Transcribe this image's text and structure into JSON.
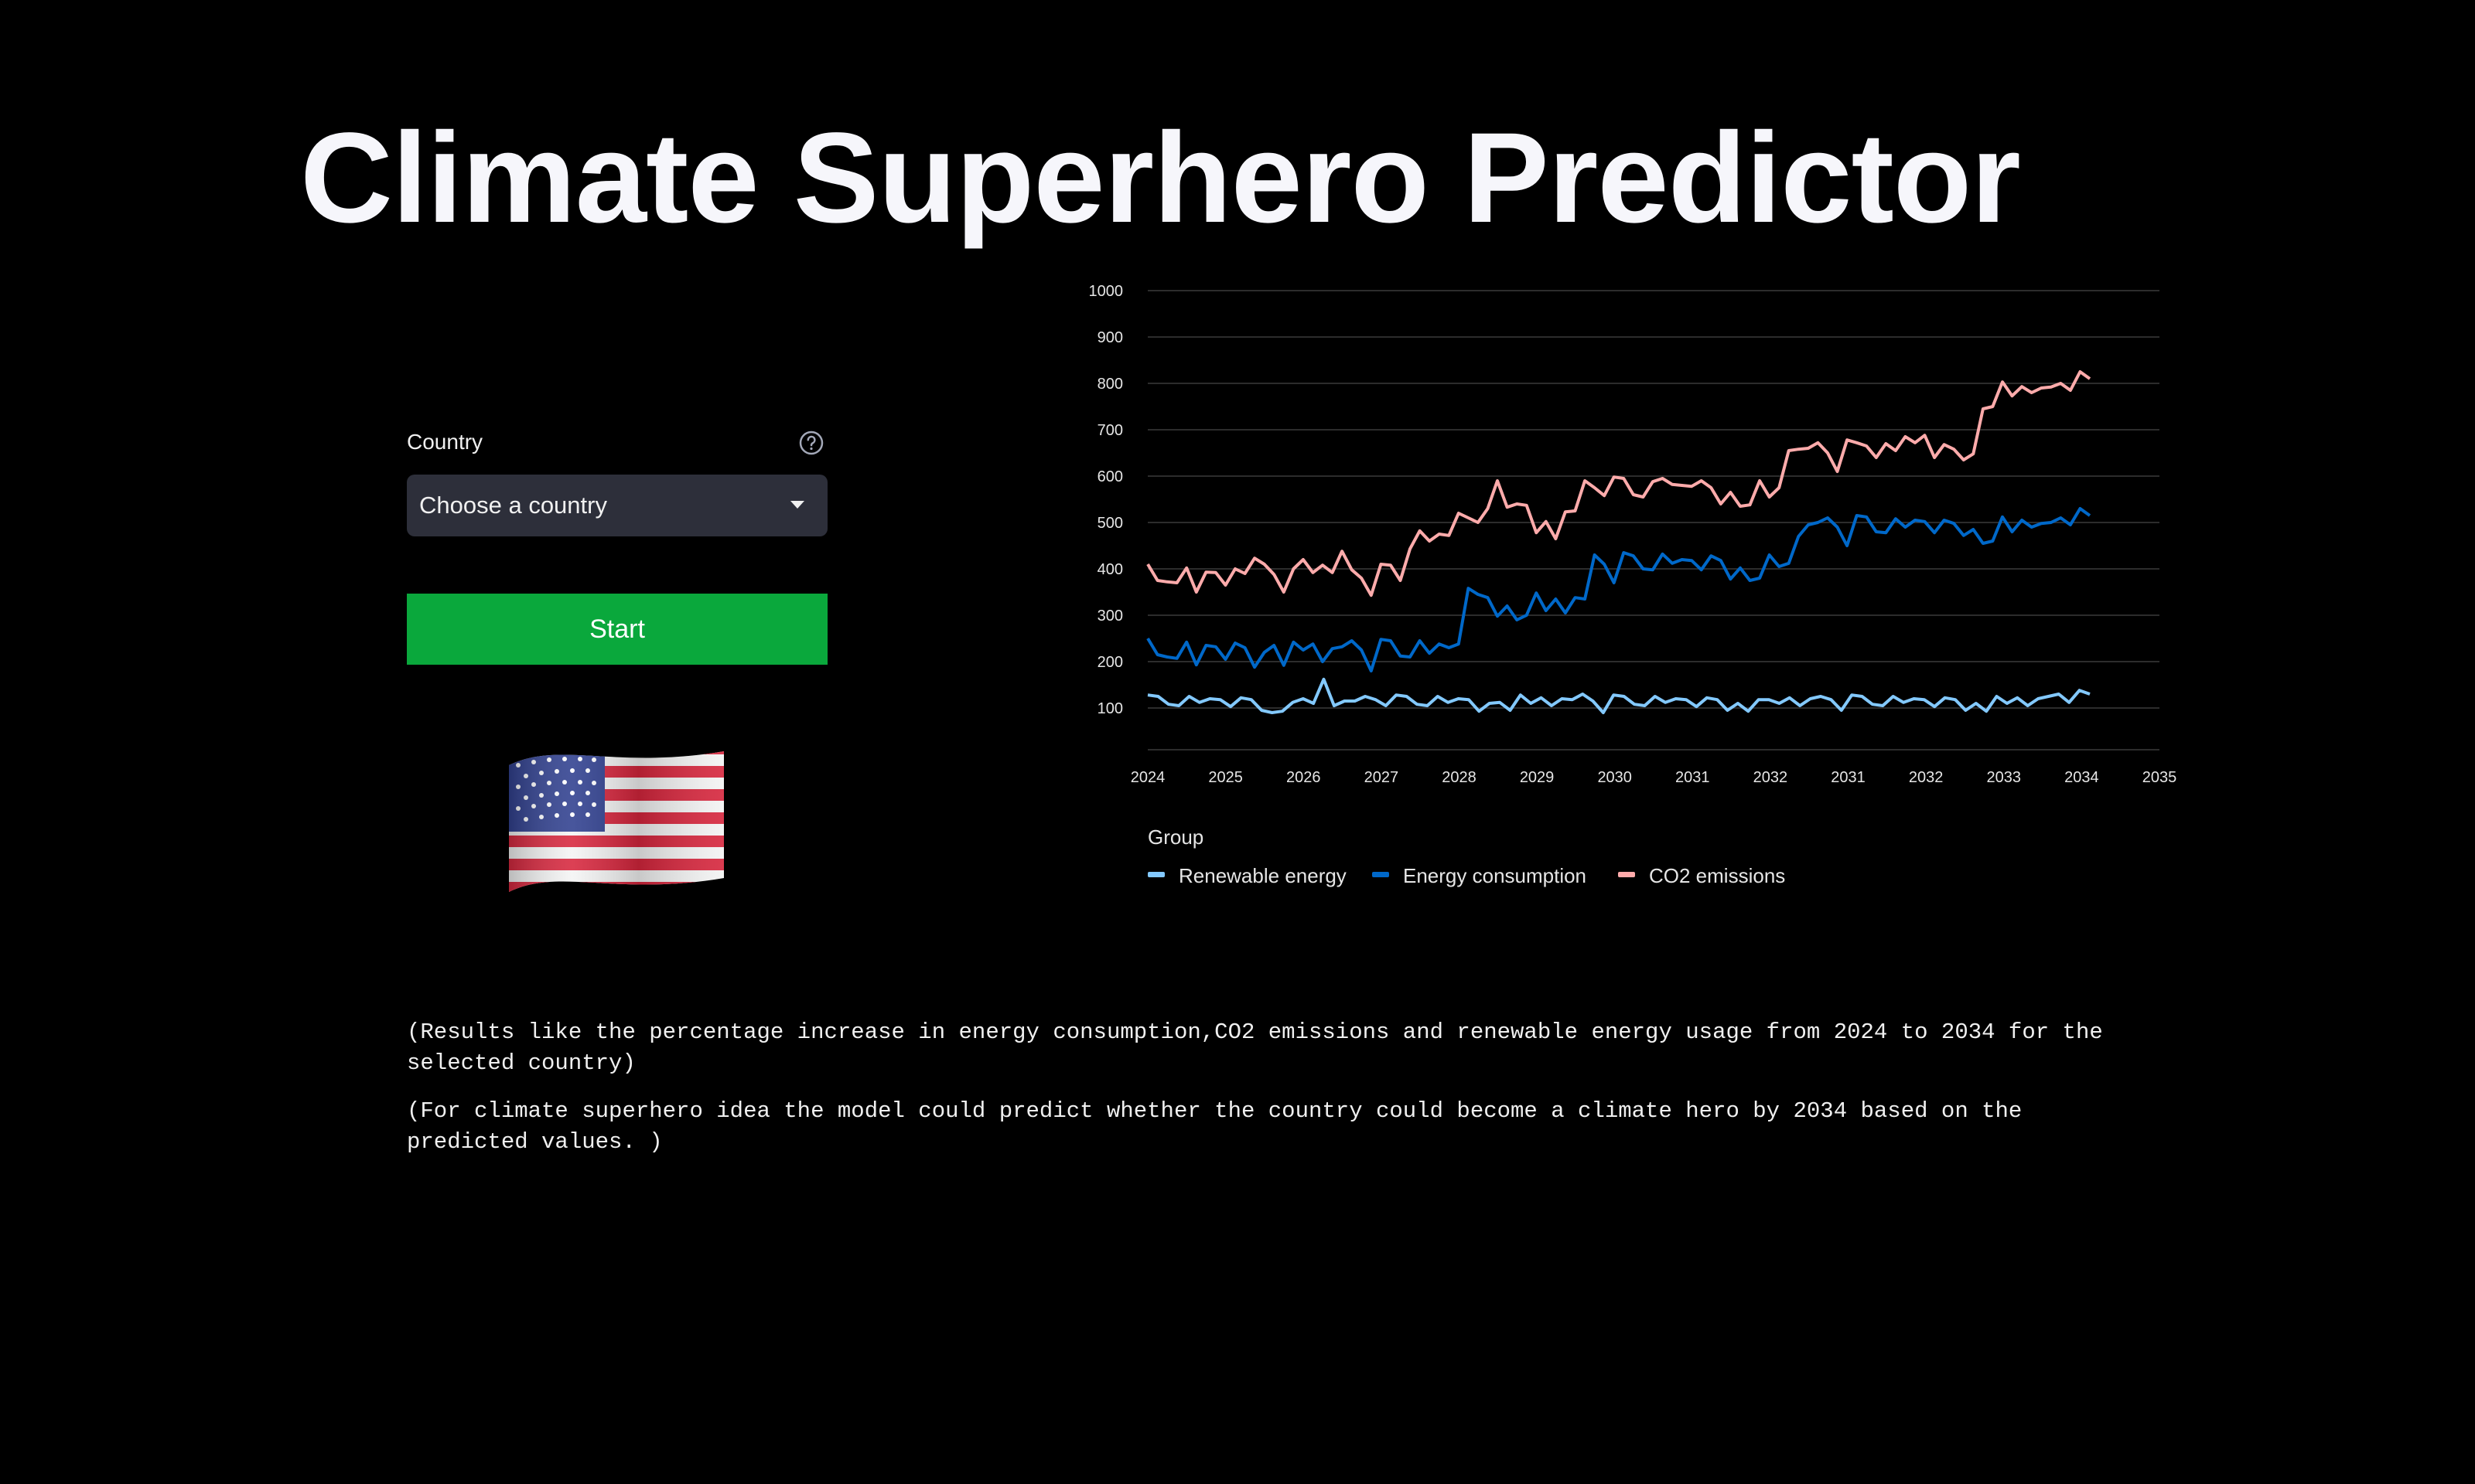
{
  "page": {
    "title": "Climate Superhero Predictor"
  },
  "country_select": {
    "label": "Country",
    "placeholder": "Choose a country",
    "help_icon": "question-circle-icon"
  },
  "start_button": {
    "label": "Start",
    "color": "#0aa83c"
  },
  "flag": {
    "icon": "us-flag-icon"
  },
  "results": {
    "line1": "(Results like the percentage increase in energy consumption,CO2 emissions and renewable energy usage from 2024 to 2034 for the selected country)",
    "line2": "(For climate superhero idea the model could predict whether the country could become a climate hero by 2034 based on the predicted values. )"
  },
  "chart_data": {
    "type": "line",
    "title": "",
    "xlabel": "",
    "ylabel": "",
    "y_ticks": [
      100,
      200,
      300,
      400,
      500,
      600,
      700,
      800,
      900,
      1000
    ],
    "ylim": [
      10,
      1000
    ],
    "x_tick_labels": [
      "2024",
      "2025",
      "2026",
      "2027",
      "2028",
      "2029",
      "2030",
      "2031",
      "2032",
      "2031",
      "2032",
      "2033",
      "2034",
      "2035"
    ],
    "grid": "horizontal",
    "legend": {
      "title": "Group",
      "placement": "bottom-left"
    },
    "series": [
      {
        "name": "Renewable energy",
        "color": "#83c9ff",
        "values": [
          128,
          125,
          108,
          105,
          125,
          112,
          120,
          118,
          103,
          122,
          118,
          95,
          90,
          93,
          112,
          120,
          110,
          162,
          105,
          115,
          115,
          125,
          118,
          105,
          128,
          125,
          108,
          105,
          125,
          112,
          120,
          118,
          93,
          110,
          112,
          95,
          128,
          110,
          122,
          105,
          120,
          118,
          130,
          115,
          90,
          128,
          125,
          108,
          105,
          125,
          112,
          120,
          118,
          103,
          122,
          118,
          95,
          110,
          93,
          118,
          118,
          110,
          122,
          105,
          120,
          125,
          118,
          95,
          128,
          125,
          108,
          105,
          125,
          112,
          120,
          118,
          103,
          122,
          118,
          95,
          110,
          93,
          125,
          110,
          122,
          105,
          120,
          125,
          130,
          112,
          138,
          130
        ]
      },
      {
        "name": "Energy consumption",
        "color": "#0068c9",
        "values": [
          250,
          215,
          210,
          207,
          242,
          193,
          235,
          232,
          205,
          240,
          230,
          188,
          220,
          235,
          192,
          242,
          225,
          238,
          200,
          228,
          232,
          245,
          225,
          180,
          248,
          245,
          212,
          210,
          245,
          218,
          238,
          230,
          238,
          358,
          345,
          338,
          298,
          320,
          290,
          300,
          348,
          310,
          335,
          305,
          338,
          335,
          430,
          410,
          370,
          435,
          428,
          400,
          398,
          432,
          412,
          420,
          418,
          398,
          428,
          418,
          378,
          402,
          375,
          380,
          430,
          405,
          412,
          470,
          495,
          500,
          510,
          490,
          450,
          515,
          512,
          480,
          478,
          508,
          490,
          505,
          502,
          478,
          505,
          498,
          472,
          485,
          455,
          460,
          512,
          480,
          505,
          490,
          498,
          500,
          510,
          495,
          530,
          515
        ]
      },
      {
        "name": "CO2 emissions",
        "color": "#ffabab",
        "values": [
          410,
          375,
          372,
          370,
          402,
          350,
          393,
          392,
          365,
          400,
          390,
          423,
          410,
          388,
          350,
          400,
          420,
          392,
          408,
          392,
          438,
          398,
          380,
          343,
          410,
          408,
          375,
          443,
          482,
          460,
          475,
          472,
          520,
          510,
          500,
          530,
          590,
          533,
          540,
          537,
          478,
          502,
          465,
          523,
          525,
          590,
          575,
          558,
          598,
          595,
          560,
          555,
          588,
          595,
          582,
          580,
          578,
          590,
          575,
          540,
          565,
          535,
          538,
          590,
          555,
          575,
          655,
          658,
          660,
          672,
          650,
          610,
          678,
          672,
          665,
          640,
          670,
          655,
          685,
          672,
          688,
          640,
          668,
          658,
          635,
          648,
          745,
          750,
          803,
          773,
          793,
          780,
          790,
          792,
          800,
          785,
          825,
          810
        ]
      }
    ]
  }
}
